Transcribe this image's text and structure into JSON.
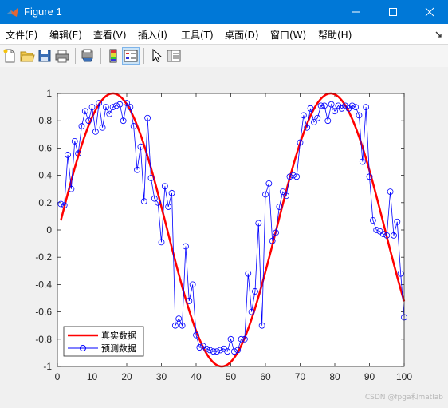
{
  "window": {
    "title": "Figure 1"
  },
  "menu": [
    "文件(F)",
    "编辑(E)",
    "查看(V)",
    "插入(I)",
    "工具(T)",
    "桌面(D)",
    "窗口(W)",
    "帮助(H)"
  ],
  "toolbar": [
    "new-figure-icon",
    "open-file-icon",
    "save-icon",
    "print-icon",
    "print-preview-icon",
    "colorbar-icon",
    "legend-icon",
    "pointer-icon",
    "property-editor-icon"
  ],
  "watermark": "CSDN @fpga和matlab",
  "chart_data": {
    "type": "line",
    "xlim": [
      0,
      100
    ],
    "ylim": [
      -1,
      1
    ],
    "xticks": [
      0,
      10,
      20,
      30,
      40,
      50,
      60,
      70,
      80,
      90,
      100
    ],
    "yticks": [
      -1,
      -0.8,
      -0.6,
      -0.4,
      -0.2,
      0,
      0.2,
      0.4,
      0.6,
      0.8,
      1
    ],
    "ytick_labels": [
      "-1",
      "-0.8",
      "-0.6",
      "-0.4",
      "-0.2",
      "0",
      "0.2",
      "0.4",
      "0.6",
      "0.8",
      "1"
    ],
    "grid": false,
    "legend_position": "bottom-left",
    "series": [
      {
        "name": "真实数据",
        "color": "#ff0000",
        "style": "line",
        "function": "sin",
        "x_start": 1,
        "x_end": 100,
        "period": 62.8,
        "phase_peak_x": 16
      },
      {
        "name": "预测数据",
        "color": "#0000ff",
        "style": "line-circle",
        "x": [
          1,
          2,
          3,
          4,
          5,
          6,
          7,
          8,
          9,
          10,
          11,
          12,
          13,
          14,
          15,
          16,
          17,
          18,
          19,
          20,
          21,
          22,
          23,
          24,
          25,
          26,
          27,
          28,
          29,
          30,
          31,
          32,
          33,
          34,
          35,
          36,
          37,
          38,
          39,
          40,
          41,
          42,
          43,
          44,
          45,
          46,
          47,
          48,
          49,
          50,
          51,
          52,
          53,
          54,
          55,
          56,
          57,
          58,
          59,
          60,
          61,
          62,
          63,
          64,
          65,
          66,
          67,
          68,
          69,
          70,
          71,
          72,
          73,
          74,
          75,
          76,
          77,
          78,
          79,
          80,
          81,
          82,
          83,
          84,
          85,
          86,
          87,
          88,
          89,
          90,
          91,
          92,
          93,
          94,
          95,
          96,
          97,
          98,
          99,
          100
        ],
        "y": [
          0.19,
          0.18,
          0.55,
          0.3,
          0.65,
          0.56,
          0.76,
          0.87,
          0.8,
          0.9,
          0.72,
          0.93,
          0.75,
          0.9,
          0.85,
          0.9,
          0.91,
          0.92,
          0.8,
          0.93,
          0.9,
          0.76,
          0.44,
          0.61,
          0.21,
          0.82,
          0.38,
          0.23,
          0.2,
          -0.09,
          0.32,
          0.17,
          0.27,
          -0.7,
          -0.65,
          -0.7,
          -0.12,
          -0.52,
          -0.4,
          -0.77,
          -0.86,
          -0.85,
          -0.87,
          -0.88,
          -0.89,
          -0.89,
          -0.88,
          -0.87,
          -0.89,
          -0.8,
          -0.89,
          -0.88,
          -0.8,
          -0.8,
          -0.32,
          -0.6,
          -0.45,
          0.05,
          -0.7,
          0.26,
          0.34,
          -0.08,
          -0.02,
          0.17,
          0.28,
          0.25,
          0.39,
          0.4,
          0.39,
          0.64,
          0.84,
          0.75,
          0.89,
          0.79,
          0.82,
          0.91,
          0.91,
          0.8,
          0.92,
          0.87,
          0.91,
          0.89,
          0.91,
          0.89,
          0.91,
          0.9,
          0.84,
          0.5,
          0.9,
          0.39,
          0.07,
          0,
          -0.01,
          -0.03,
          -0.04,
          0.28,
          -0.04,
          0.06,
          -0.32,
          -0.64
        ]
      }
    ]
  }
}
